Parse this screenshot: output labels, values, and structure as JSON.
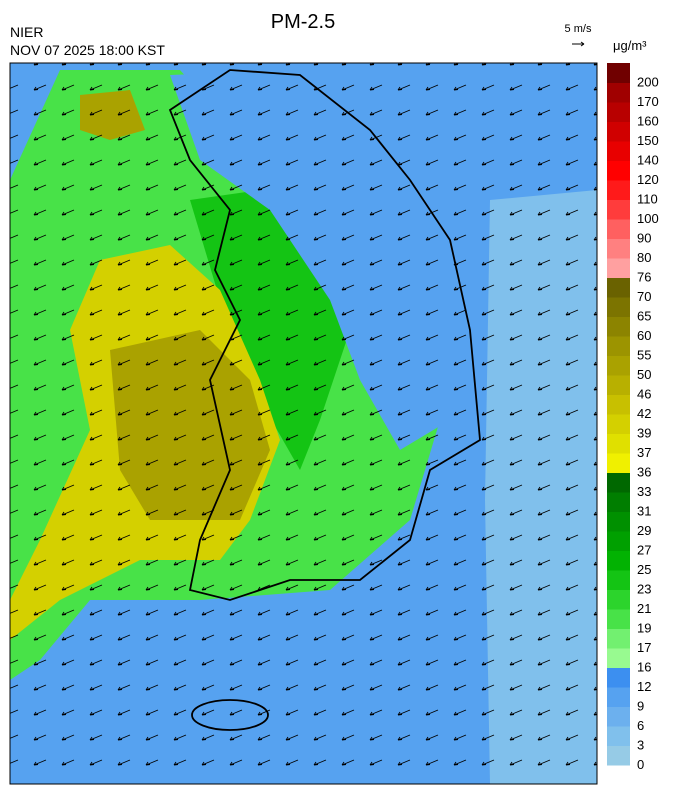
{
  "header": {
    "title": "PM-2.5",
    "agency": "NIER",
    "time": "NOV 07 2025 18:00 KST",
    "wind_scale": "5 m/s",
    "unit": "μg/m³"
  },
  "colorbar": {
    "levels": [
      0,
      3,
      6,
      9,
      12,
      16,
      17,
      19,
      21,
      23,
      25,
      27,
      29,
      31,
      33,
      36,
      37,
      39,
      42,
      46,
      50,
      55,
      60,
      65,
      70,
      76,
      80,
      90,
      100,
      110,
      120,
      140,
      150,
      160,
      170,
      200
    ],
    "colors": [
      "#96cbe6",
      "#80c0ec",
      "#6cb0ee",
      "#56a2f0",
      "#3c8ff0",
      "#98fa90",
      "#72f070",
      "#48e248",
      "#2cd42c",
      "#14c414",
      "#02b202",
      "#00a000",
      "#009000",
      "#007e00",
      "#006800",
      "#f0f000",
      "#e0e000",
      "#d4d000",
      "#c8c000",
      "#b8b000",
      "#aaa200",
      "#9c9400",
      "#8c8400",
      "#7c7400",
      "#6a6200",
      "#ffa0a0",
      "#ff8080",
      "#ff6060",
      "#ff3c3c",
      "#ff1a1a",
      "#ff0000",
      "#e80000",
      "#d00000",
      "#b80000",
      "#a00000",
      "#700000"
    ]
  }
}
